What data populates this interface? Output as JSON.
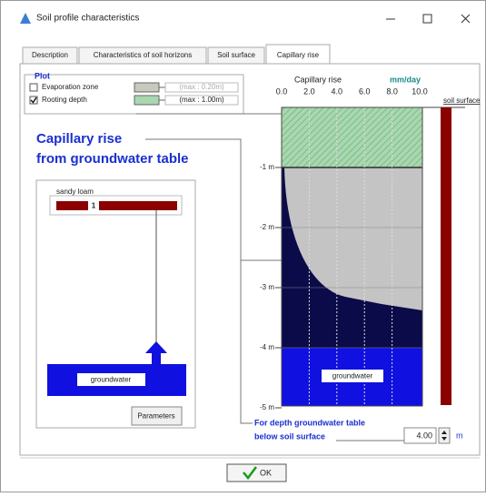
{
  "window": {
    "title": "Soil profile characteristics"
  },
  "tabs": [
    "Description",
    "Characteristics of soil horizons",
    "Soil surface",
    "Capillary rise"
  ],
  "active_tab": 3,
  "plot_group": {
    "title": "Plot",
    "options": [
      {
        "label": "Evaporation zone",
        "checked": false,
        "max": "(max : 0.20m)",
        "color": "#c8c8bc"
      },
      {
        "label": "Rooting depth",
        "checked": true,
        "max": "(max : 1.00m)",
        "color": "#a9d7b0"
      }
    ]
  },
  "heading": [
    "Capillary rise",
    "from groundwater table"
  ],
  "soil": {
    "texture": "sandy loam",
    "horizon": "1",
    "groundwater": "groundwater",
    "button": "Parameters"
  },
  "profile": {
    "title": "Capillary rise",
    "unit": "mm/day",
    "x_labels": [
      "0.0",
      "2.0",
      "4.0",
      "6.0",
      "8.0",
      "10.0"
    ],
    "surface_label": "soil surface",
    "depth_labels": [
      "-1 m",
      "-2 m",
      "-3 m",
      "-4 m",
      "-5 m"
    ],
    "groundwater": "groundwater"
  },
  "depth_input": {
    "label": [
      "For depth groundwater table",
      "below soil surface"
    ],
    "value": "4.00",
    "unit": "m"
  },
  "ok": "OK"
}
